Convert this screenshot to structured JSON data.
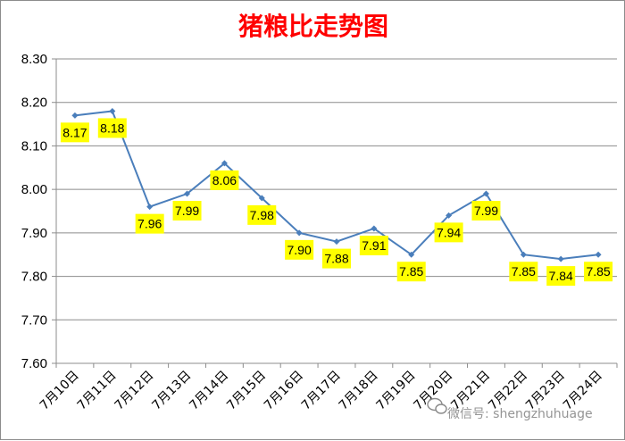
{
  "chart_data": {
    "type": "line",
    "title": "猪粮比走势图",
    "categories": [
      "7月10日",
      "7月11日",
      "7月12日",
      "7月13日",
      "7月14日",
      "7月15日",
      "7月16日",
      "7月17日",
      "7月18日",
      "7月19日",
      "7月20日",
      "7月21日",
      "7月22日",
      "7月23日",
      "7月24日"
    ],
    "values": [
      8.17,
      8.18,
      7.96,
      7.99,
      8.06,
      7.98,
      7.9,
      7.88,
      7.91,
      7.85,
      7.94,
      7.99,
      7.85,
      7.84,
      7.85
    ],
    "data_labels": [
      "8.17",
      "8.18",
      "7.96",
      "7.99",
      "8.06",
      "7.98",
      "7.90",
      "7.88",
      "7.91",
      "7.85",
      "7.94",
      "7.99",
      "7.85",
      "7.84",
      "7.85"
    ],
    "yticks": [
      "7.60",
      "7.70",
      "7.80",
      "7.90",
      "8.00",
      "8.10",
      "8.20",
      "8.30"
    ],
    "ylim": [
      7.6,
      8.3
    ],
    "grid": true,
    "line_color": "#4a7ebb",
    "label_bg": "#ffff00",
    "title_color": "#ff0000"
  },
  "watermark": "微信号: shengzhuhuage"
}
